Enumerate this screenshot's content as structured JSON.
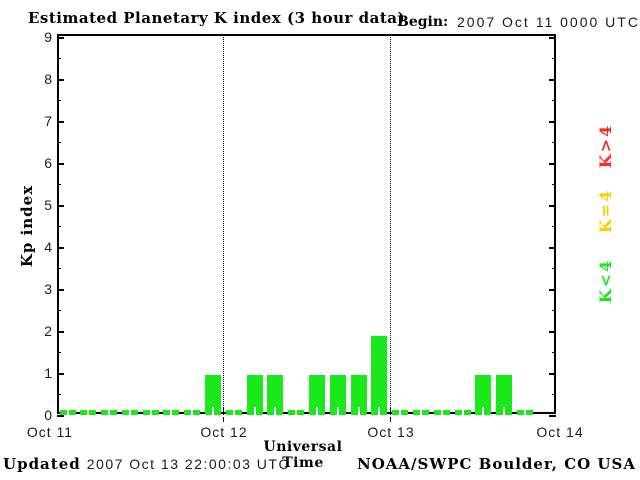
{
  "title": "Estimated Planetary K index (3 hour data)",
  "begin": {
    "label": "Begin:",
    "value": "2007 Oct 11 0000 UTC"
  },
  "axes": {
    "ylabel": "Kp index",
    "xlabel": "Universal Time",
    "x_tick_labels": [
      "Oct 11",
      "Oct 12",
      "Oct 13",
      "Oct 14"
    ]
  },
  "legend": [
    {
      "label": "K>4",
      "color": "#ff2a1a"
    },
    {
      "label": "K=4",
      "color": "#ffcc00"
    },
    {
      "label": "K<4",
      "color": "#1ae81a"
    }
  ],
  "footer": {
    "updated_label": "Updated",
    "updated_value": "2007 Oct 13 22:00:03 UTC",
    "credit": "NOAA/SWPC Boulder, CO USA"
  },
  "chart_data": {
    "type": "bar",
    "title": "Estimated Planetary K index (3 hour data)",
    "begin": "2007 Oct 11 0000 UTC",
    "xlabel": "Universal Time",
    "ylabel": "Kp index",
    "ylim": [
      0,
      9
    ],
    "y_major_tick_step": 1,
    "y_minor_tick_step": 0.5,
    "bar_interval_hours": 3,
    "x_tick_labels": [
      "Oct 11",
      "Oct 12",
      "Oct 13",
      "Oct 14"
    ],
    "vertical_dotted_gridlines_at": [
      "Oct 12",
      "Oct 13"
    ],
    "bar_color": "#1ae81a",
    "color_rule": {
      "K<4": "#1ae81a",
      "K=4": "#ffcc00",
      "K>4": "#ff2a1a"
    },
    "days": [
      {
        "date": "Oct 11",
        "values": [
          0,
          0,
          0,
          0,
          0,
          0,
          0,
          1
        ]
      },
      {
        "date": "Oct 12",
        "values": [
          0,
          1,
          1,
          0,
          1,
          1,
          1,
          2
        ]
      },
      {
        "date": "Oct 13",
        "values": [
          0,
          0,
          0,
          0,
          1,
          1,
          0
        ]
      }
    ],
    "legend": [
      "K>4",
      "K=4",
      "K<4"
    ],
    "legend_position": "right",
    "grid": "off"
  }
}
